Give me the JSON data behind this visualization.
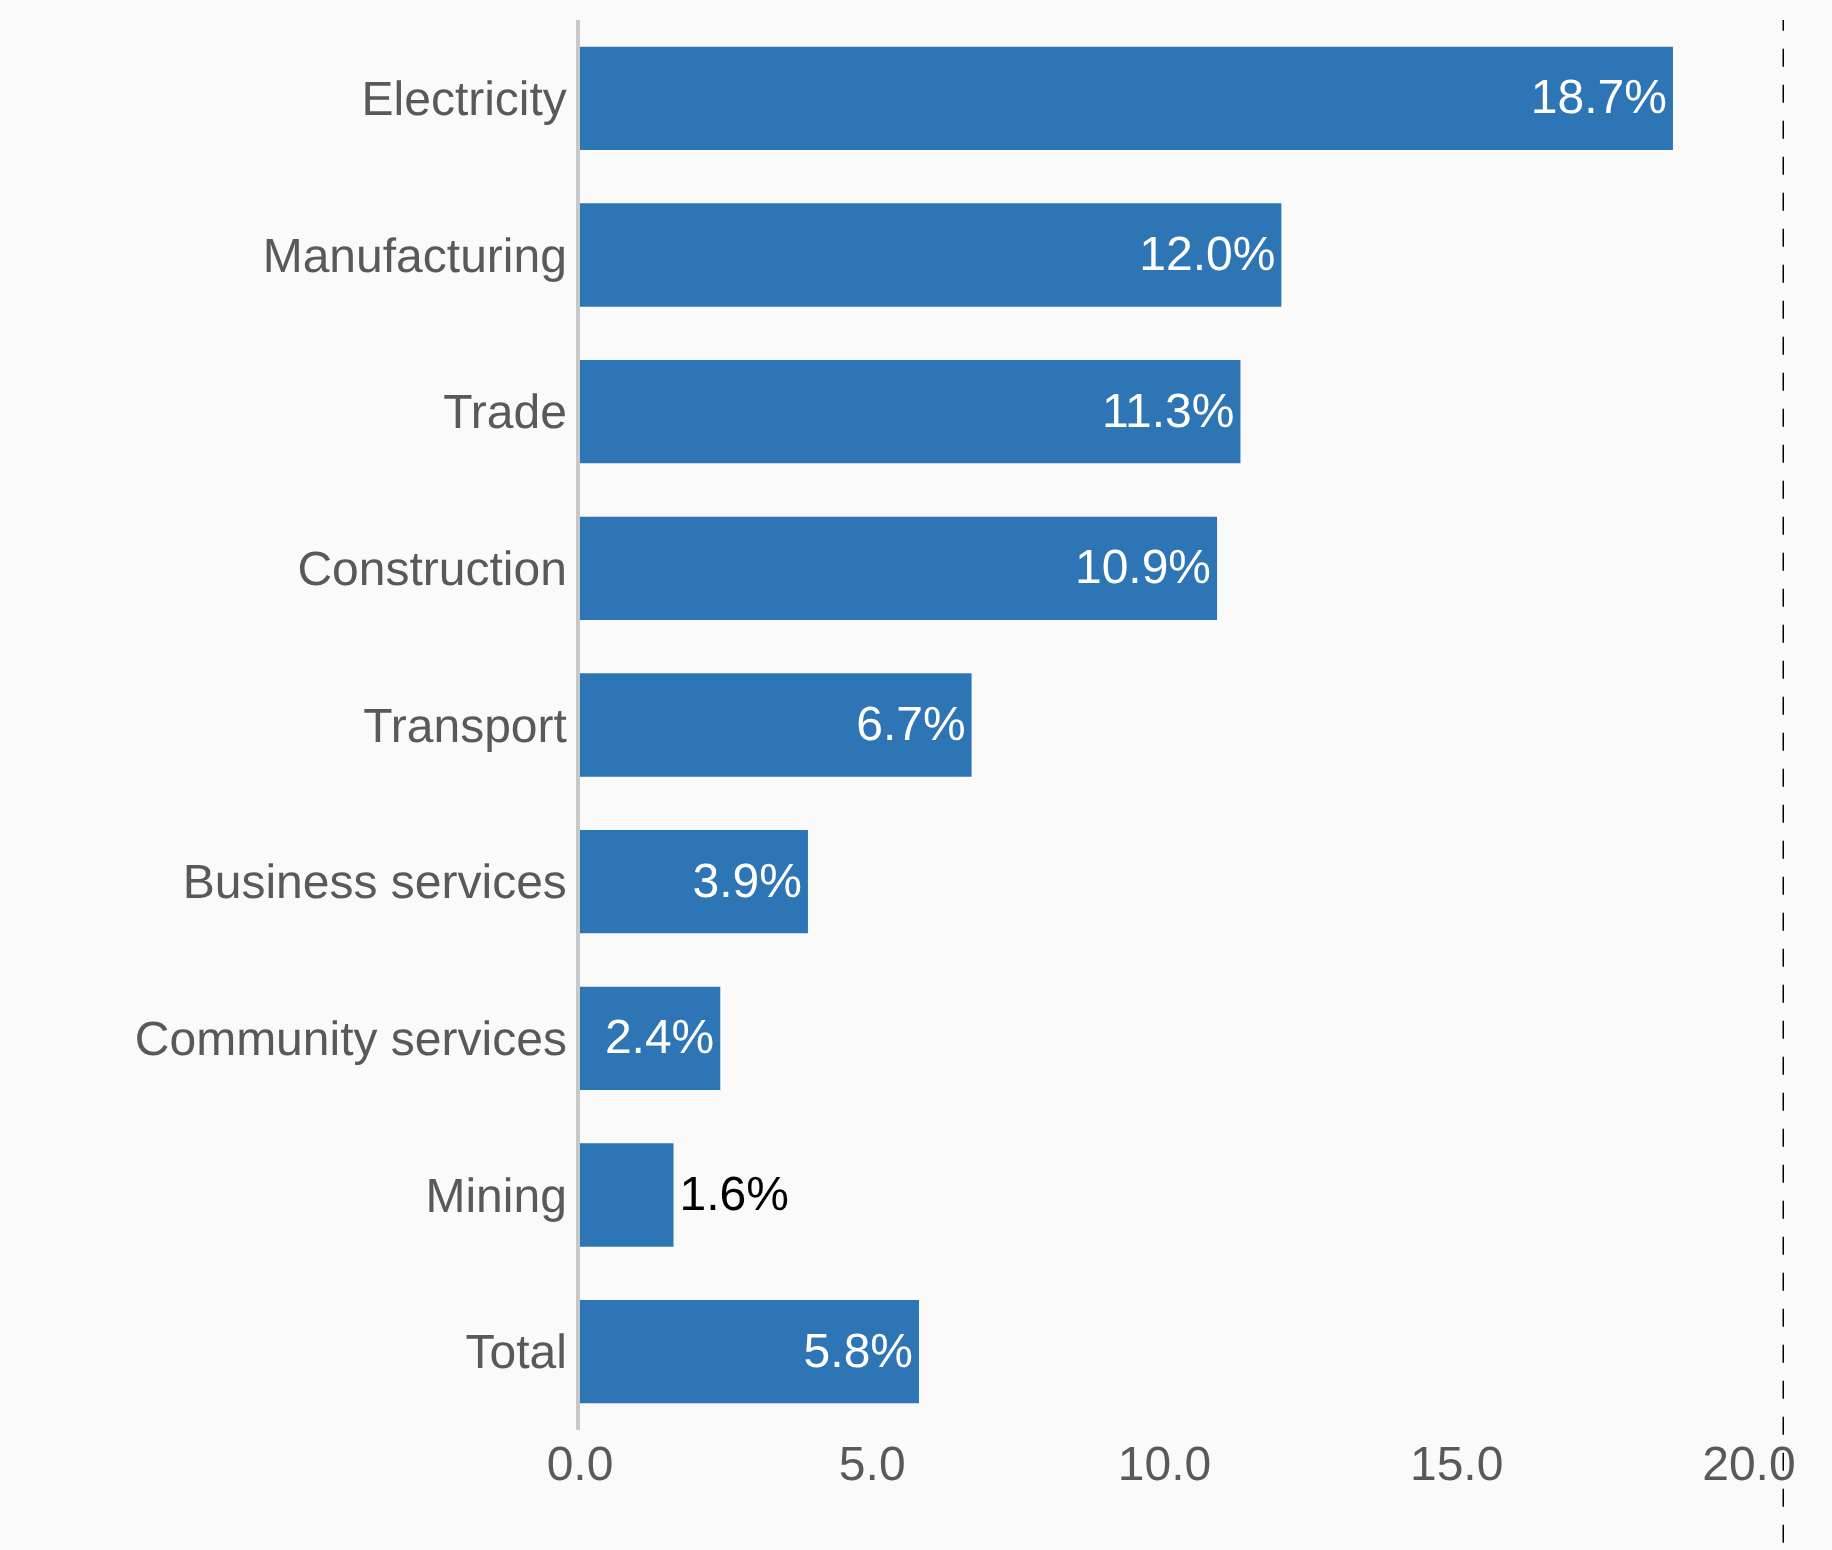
{
  "chart_data": {
    "type": "bar",
    "orientation": "horizontal",
    "categories": [
      "Electricity",
      "Manufacturing",
      "Trade",
      "Construction",
      "Transport",
      "Business services",
      "Community services",
      "Mining",
      "Total"
    ],
    "values": [
      18.7,
      12.0,
      11.3,
      10.9,
      6.7,
      3.9,
      2.4,
      1.6,
      5.8
    ],
    "value_labels": [
      "18.7%",
      "12.0%",
      "11.3%",
      "10.9%",
      "6.7%",
      "3.9%",
      "2.4%",
      "1.6%",
      "5.8%"
    ],
    "color": "#2e75b6",
    "xlim": [
      0,
      20.6
    ],
    "xticks": [
      {
        "value": 0,
        "label": "0.0"
      },
      {
        "value": 5,
        "label": "5.0"
      },
      {
        "value": 10,
        "label": "10.0"
      },
      {
        "value": 15,
        "label": "15.0"
      },
      {
        "value": 20,
        "label": "20.0"
      }
    ],
    "ref_lines": [
      {
        "axis": "x",
        "value": 20.6,
        "color": "#000000",
        "line_style": "dashed"
      }
    ],
    "grid": false,
    "legend": false
  }
}
